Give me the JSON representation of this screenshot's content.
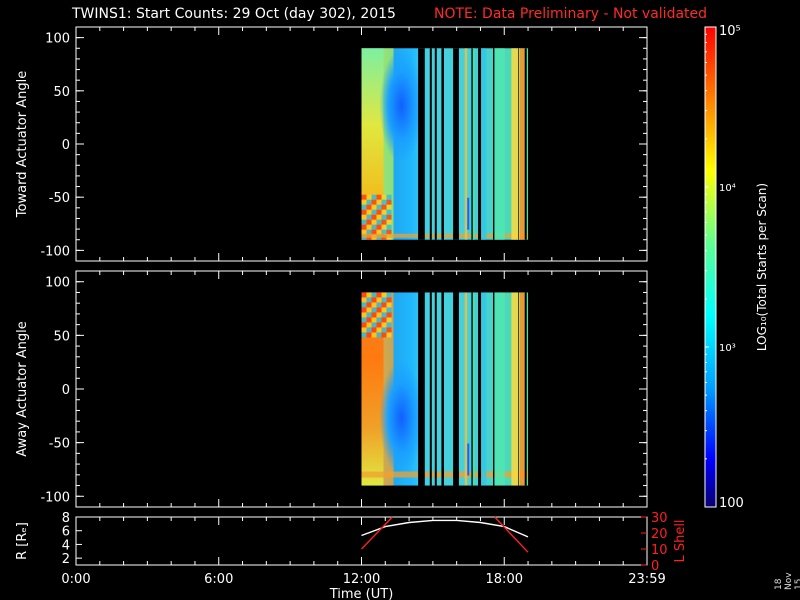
{
  "title": "TWINS1: Start Counts: 29 Oct (day 302), 2015",
  "note": "NOTE: Data Preliminary - Not validated",
  "date_stamp": "18 Nov 15",
  "colors": {
    "note": "#ff2a2a",
    "axes": "#ffffff",
    "ephemeris": "#ff2020"
  },
  "chart_data": [
    {
      "type": "heatmap",
      "ylabel": "Toward Actuator Angle",
      "ylim": [
        -110,
        110
      ],
      "yticks": [
        "100",
        "50",
        "0",
        "-50",
        "-100"
      ],
      "xlim": [
        0,
        24
      ],
      "data_extent": {
        "x_start_hr": 12.0,
        "x_end_hr": 19.0,
        "y_range": [
          -90,
          90
        ]
      },
      "grid": false
    },
    {
      "type": "heatmap",
      "ylabel": "Away Actuator Angle",
      "ylim": [
        -110,
        110
      ],
      "yticks": [
        "100",
        "50",
        "0",
        "-50",
        "-100"
      ],
      "xlim": [
        0,
        24
      ],
      "data_extent": {
        "x_start_hr": 12.0,
        "x_end_hr": 19.0,
        "y_range": [
          -90,
          90
        ]
      },
      "grid": false
    },
    {
      "type": "line",
      "ylabel": "R [Rₑ]",
      "ylabel_right": "L Shell",
      "ylim_left": [
        1,
        8
      ],
      "yticks_left": [
        "8",
        "6",
        "4",
        "2"
      ],
      "ylim_right": [
        0,
        30
      ],
      "yticks_right": [
        "30",
        "20",
        "10",
        "0"
      ],
      "xlabel": "Time (UT)",
      "xticks": [
        "0:00",
        "6:00",
        "12:00",
        "18:00",
        "23:59"
      ],
      "series": [
        {
          "axis": "left",
          "color": "#ffffff",
          "x": [
            12.0,
            13.0,
            14.0,
            15.0,
            16.0,
            17.0,
            18.0,
            19.0
          ],
          "y": [
            5.3,
            6.6,
            7.2,
            7.5,
            7.5,
            7.2,
            6.6,
            5.1
          ]
        },
        {
          "axis": "right",
          "color": "#ff2020",
          "x": [
            12.0,
            13.3
          ],
          "y": [
            10,
            30
          ]
        },
        {
          "axis": "right",
          "color": "#ff2020",
          "x": [
            17.6,
            19.0
          ],
          "y": [
            30,
            8
          ]
        }
      ]
    }
  ],
  "colorbar": {
    "label": "LOG₁₀(Total Starts per Scan)",
    "ticks": [
      "10⁵",
      "10⁴",
      "10³",
      "100"
    ],
    "range": [
      100,
      100000
    ],
    "scale": "log"
  }
}
